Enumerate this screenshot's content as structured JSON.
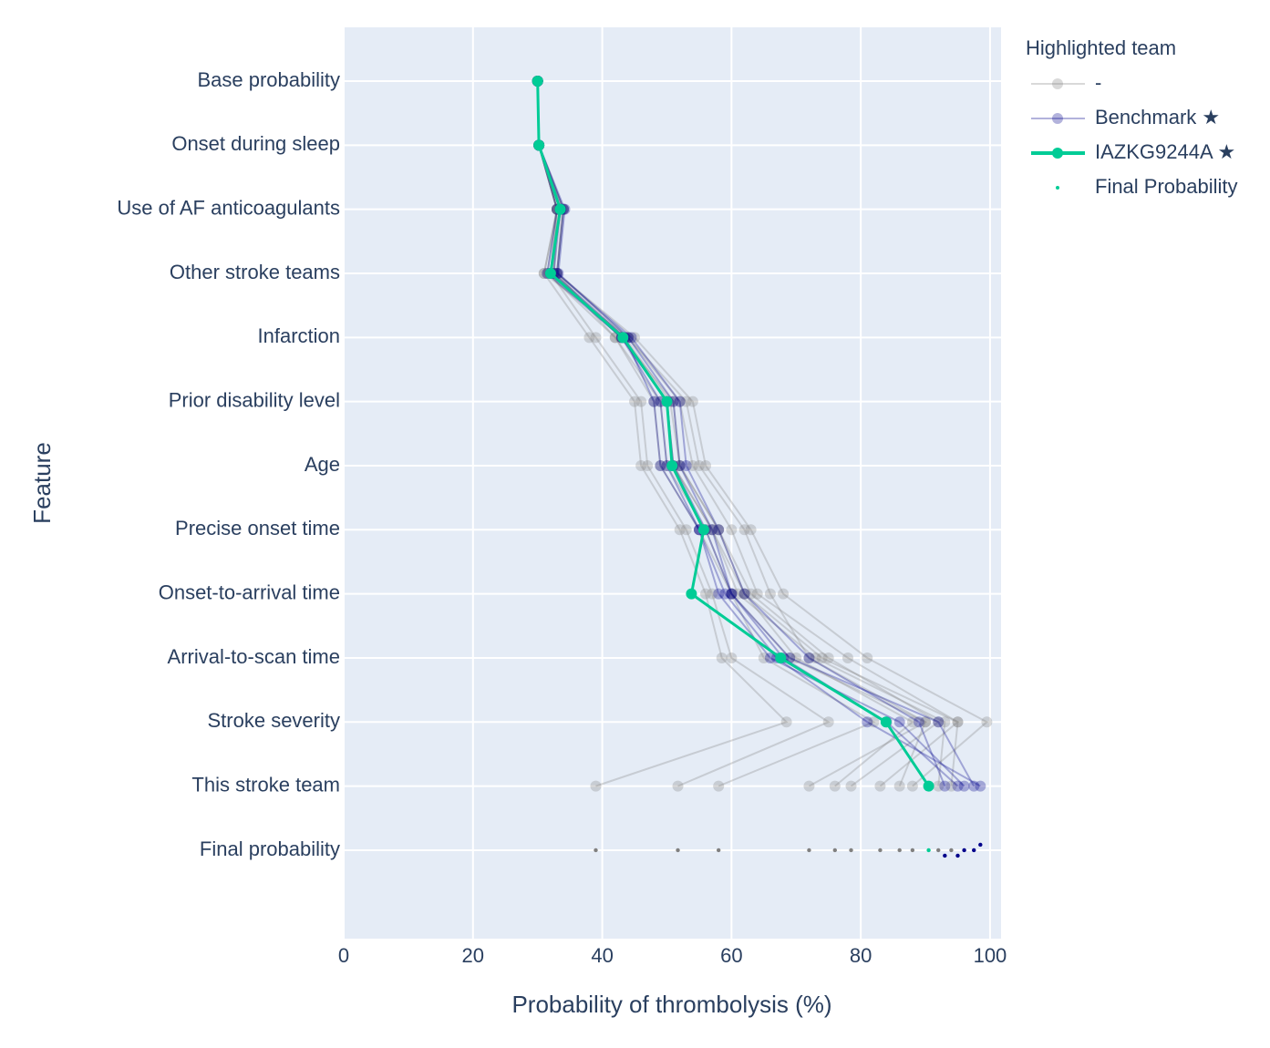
{
  "chart_data": {
    "type": "waterfall-lines",
    "x_label": "Probability of thrombolysis (%)",
    "y_label": "Feature",
    "categories": [
      "Base probability",
      "Onset during sleep",
      "Use of AF anticoagulants",
      "Other stroke teams",
      "Infarction",
      "Prior disability level",
      "Age",
      "Precise onset time",
      "Onset-to-arrival time",
      "Arrival-to-scan time",
      "Stroke severity",
      "This stroke team",
      "Final probability"
    ],
    "xlim": [
      0,
      101.7
    ],
    "xticks": [
      0,
      20,
      40,
      60,
      80,
      100
    ],
    "grid": true,
    "legend_title": "Highlighted team",
    "legend": "top right outside",
    "series": [
      {
        "name": "-",
        "color": "#808080",
        "values": [
          [
            30,
            30.2,
            33,
            31,
            38,
            45,
            46,
            52,
            56,
            58.5,
            68.5,
            39
          ],
          [
            30,
            30.2,
            33,
            32,
            39,
            46,
            47,
            53,
            57,
            60,
            75,
            51.7
          ],
          [
            30,
            30.2,
            34,
            33,
            42,
            48,
            49,
            55,
            60,
            65,
            82,
            58
          ],
          [
            30,
            30.2,
            33,
            31,
            44,
            53,
            55,
            62,
            66,
            72,
            90,
            72
          ],
          [
            30,
            30.2,
            33.5,
            32,
            43,
            50,
            51,
            57,
            62,
            70,
            88,
            76
          ],
          [
            30,
            30.2,
            33,
            32.5,
            43,
            51,
            52,
            58,
            63,
            75,
            92,
            78.5
          ],
          [
            30,
            30.2,
            33.8,
            33,
            44,
            52,
            54,
            60,
            64,
            78,
            95,
            83
          ],
          [
            30,
            30.2,
            33,
            31.5,
            42,
            49,
            50,
            56,
            60,
            69,
            90,
            86
          ],
          [
            30,
            30.2,
            34,
            33,
            45,
            54,
            56,
            63,
            68,
            81,
            99.5,
            88
          ],
          [
            30,
            30.2,
            33,
            32,
            43,
            50,
            51,
            57,
            61,
            73,
            93,
            92
          ],
          [
            30,
            30.2,
            33.4,
            32.4,
            43.5,
            50.5,
            52,
            58,
            62,
            74,
            95,
            94
          ]
        ]
      },
      {
        "name": "Benchmark ★",
        "color": "#00008b",
        "values": [
          [
            30,
            30.2,
            34,
            33,
            44.5,
            52,
            53,
            58,
            62,
            72,
            89,
            93
          ],
          [
            30,
            30.2,
            33.5,
            32.5,
            43.5,
            48,
            49,
            55,
            58,
            66,
            86,
            96
          ],
          [
            30,
            30.2,
            33,
            31.5,
            43,
            50,
            51,
            56,
            60,
            69,
            92,
            97.5
          ],
          [
            30,
            30.2,
            34.2,
            33.2,
            44,
            51,
            52,
            57,
            60,
            68,
            84,
            95
          ],
          [
            30,
            30.2,
            33.6,
            32,
            43,
            49,
            50,
            55,
            59,
            67,
            81,
            98.5
          ]
        ]
      },
      {
        "name": "IAZKG9244A ★",
        "color": "#00cc96",
        "values": [
          [
            30,
            30.2,
            33.5,
            32,
            43.2,
            50,
            50.8,
            55.7,
            53.8,
            67.6,
            83.9,
            90.5
          ]
        ]
      },
      {
        "name": "Final Probability",
        "color": "#00cc96"
      }
    ]
  }
}
